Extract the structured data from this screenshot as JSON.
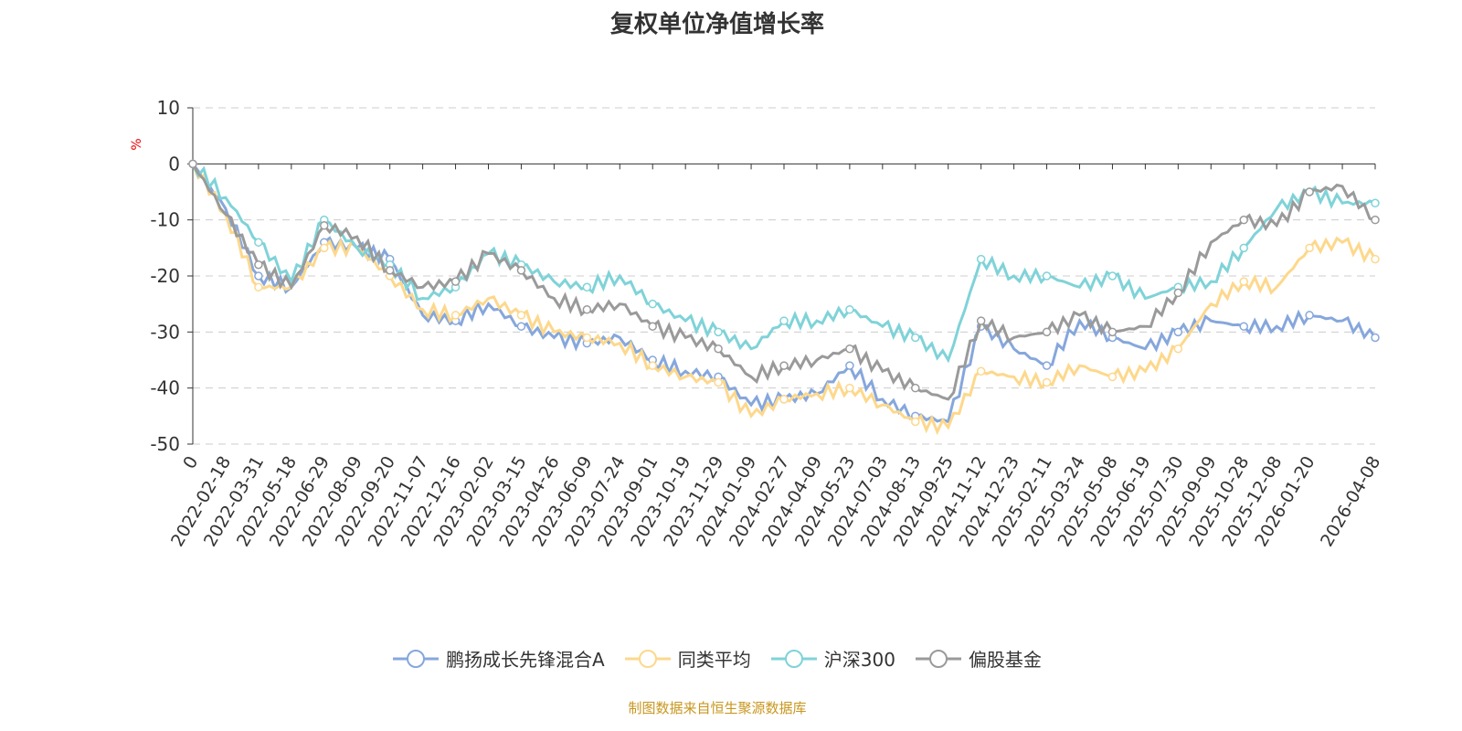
{
  "chart_data": {
    "type": "line",
    "title": "复权单位净值增长率",
    "ylabel": "%",
    "ylim": [
      -50,
      10
    ],
    "yticks": [
      10,
      0,
      -10,
      -20,
      -30,
      -40,
      -50
    ],
    "grid": true,
    "legend_position": "bottom",
    "x": [
      "0",
      "2022-02-18",
      "2022-03-31",
      "2022-05-18",
      "2022-06-29",
      "2022-08-09",
      "2022-09-20",
      "2022-11-07",
      "2022-12-16",
      "2023-02-02",
      "2023-03-15",
      "2023-04-26",
      "2023-06-09",
      "2023-07-24",
      "2023-09-01",
      "2023-10-19",
      "2023-11-29",
      "2024-01-09",
      "2024-02-27",
      "2024-04-09",
      "2024-05-23",
      "2024-07-03",
      "2024-08-13",
      "2024-09-25",
      "2024-11-12",
      "2024-12-23",
      "2025-02-11",
      "2025-03-24",
      "2025-05-08",
      "2025-06-19",
      "2025-07-30",
      "2025-09-09",
      "2025-10-28",
      "2025-12-08",
      "2026-01-20",
      "",
      "2026-04-08"
    ],
    "series": [
      {
        "name": "鹏扬成长先锋混合A",
        "color": "#86a7dc",
        "values": [
          0,
          -8,
          -20,
          -22,
          -14,
          -15,
          -17,
          -27,
          -28,
          -25,
          -29,
          -31,
          -32,
          -31,
          -35,
          -37,
          -38,
          -43,
          -42,
          -41,
          -36,
          -42,
          -45,
          -46,
          -29,
          -33,
          -36,
          -28,
          -31,
          -33,
          -30,
          -28,
          -29,
          -29,
          -27,
          -28,
          -31
        ]
      },
      {
        "name": "同类平均",
        "color": "#fdd88c",
        "values": [
          0,
          -9,
          -22,
          -22,
          -15,
          -15,
          -20,
          -26,
          -27,
          -24,
          -27,
          -30,
          -31,
          -32,
          -36,
          -38,
          -39,
          -45,
          -42,
          -41,
          -40,
          -43,
          -46,
          -47,
          -37,
          -38,
          -39,
          -36,
          -38,
          -37,
          -33,
          -25,
          -21,
          -22,
          -15,
          -14,
          -17
        ]
      },
      {
        "name": "沪深300",
        "color": "#7fd3d8",
        "values": [
          0,
          -6,
          -14,
          -21,
          -10,
          -15,
          -18,
          -24,
          -22,
          -16,
          -18,
          -21,
          -22,
          -20,
          -25,
          -28,
          -30,
          -33,
          -28,
          -28,
          -26,
          -29,
          -31,
          -35,
          -17,
          -20,
          -20,
          -22,
          -20,
          -24,
          -22,
          -21,
          -15,
          -8,
          -5,
          -7,
          -7
        ]
      },
      {
        "name": "偏股基金",
        "color": "#9a9a9a",
        "values": [
          0,
          -9,
          -18,
          -22,
          -11,
          -13,
          -19,
          -22,
          -21,
          -16,
          -19,
          -24,
          -26,
          -25,
          -29,
          -31,
          -33,
          -38,
          -36,
          -35,
          -33,
          -37,
          -40,
          -42,
          -28,
          -31,
          -30,
          -27,
          -30,
          -29,
          -23,
          -14,
          -10,
          -11,
          -5,
          -4,
          -10
        ]
      }
    ]
  },
  "source": "制图数据来自恒生聚源数据库"
}
